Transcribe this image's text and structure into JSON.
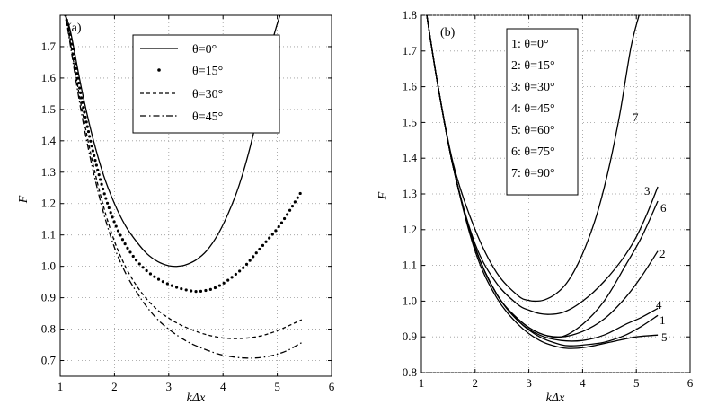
{
  "chart_data": [
    {
      "type": "line",
      "panel_label": "(a)",
      "xlabel": "kΔx",
      "ylabel": "F",
      "xlim": [
        1,
        6
      ],
      "ylim": [
        0.65,
        1.8
      ],
      "xticks": [
        1,
        2,
        3,
        4,
        5,
        6
      ],
      "yticks": [
        0.7,
        0.8,
        0.9,
        1.0,
        1.1,
        1.2,
        1.3,
        1.4,
        1.5,
        1.6,
        1.7
      ],
      "ytick_labels": [
        "0.7",
        "0.8",
        "0.9",
        "1.0",
        "1.1",
        "1.2",
        "1.3",
        "1.4",
        "1.5",
        "1.6",
        "1.7"
      ],
      "grid": true,
      "legend_position": "top-right",
      "series": [
        {
          "name": "θ=0°",
          "style": "solid",
          "x": [
            1.1,
            1.2,
            1.4,
            1.6,
            1.8,
            2.0,
            2.2,
            2.4,
            2.6,
            2.8,
            3.0,
            3.15,
            3.3,
            3.5,
            3.7,
            3.9,
            4.1,
            4.3,
            4.5,
            4.7,
            4.9,
            5.05
          ],
          "y": [
            1.8,
            1.74,
            1.56,
            1.41,
            1.29,
            1.2,
            1.13,
            1.08,
            1.04,
            1.015,
            1.002,
            1.0,
            1.004,
            1.02,
            1.05,
            1.1,
            1.17,
            1.26,
            1.38,
            1.53,
            1.71,
            1.8
          ]
        },
        {
          "name": "θ=15°",
          "style": "dotted",
          "x": [
            1.1,
            1.2,
            1.4,
            1.6,
            1.8,
            2.0,
            2.2,
            2.4,
            2.6,
            2.8,
            3.0,
            3.2,
            3.4,
            3.5,
            3.6,
            3.8,
            4.0,
            4.2,
            4.4,
            4.6,
            4.8,
            5.0,
            5.2,
            5.45
          ],
          "y": [
            1.8,
            1.72,
            1.53,
            1.37,
            1.24,
            1.14,
            1.07,
            1.02,
            0.985,
            0.96,
            0.943,
            0.93,
            0.922,
            0.92,
            0.921,
            0.928,
            0.945,
            0.97,
            1.0,
            1.04,
            1.08,
            1.12,
            1.17,
            1.24
          ]
        },
        {
          "name": "θ=30°",
          "style": "dashed",
          "x": [
            1.1,
            1.2,
            1.4,
            1.6,
            1.8,
            2.0,
            2.2,
            2.4,
            2.6,
            2.8,
            3.0,
            3.2,
            3.4,
            3.6,
            3.8,
            4.0,
            4.2,
            4.4,
            4.6,
            4.8,
            5.0,
            5.2,
            5.45
          ],
          "y": [
            1.8,
            1.7,
            1.5,
            1.33,
            1.19,
            1.08,
            1.0,
            0.94,
            0.895,
            0.86,
            0.835,
            0.815,
            0.8,
            0.787,
            0.778,
            0.772,
            0.77,
            0.771,
            0.775,
            0.783,
            0.795,
            0.81,
            0.83
          ]
        },
        {
          "name": "θ=45°",
          "style": "dashdot",
          "x": [
            1.1,
            1.2,
            1.4,
            1.6,
            1.8,
            2.0,
            2.2,
            2.4,
            2.6,
            2.8,
            3.0,
            3.2,
            3.4,
            3.6,
            3.8,
            4.0,
            4.2,
            4.4,
            4.6,
            4.8,
            5.0,
            5.2,
            5.45
          ],
          "y": [
            1.8,
            1.69,
            1.48,
            1.31,
            1.17,
            1.06,
            0.98,
            0.92,
            0.87,
            0.83,
            0.8,
            0.775,
            0.755,
            0.74,
            0.727,
            0.717,
            0.711,
            0.708,
            0.708,
            0.712,
            0.72,
            0.733,
            0.757
          ]
        }
      ],
      "legend": [
        "θ=0°",
        "θ=15°",
        "θ=30°",
        "θ=45°"
      ]
    },
    {
      "type": "line",
      "panel_label": "(b)",
      "xlabel": "kΔx",
      "ylabel": "F",
      "xlim": [
        1,
        6
      ],
      "ylim": [
        0.8,
        1.8
      ],
      "xticks": [
        1,
        2,
        3,
        4,
        5,
        6
      ],
      "yticks": [
        0.8,
        0.9,
        1.0,
        1.1,
        1.2,
        1.3,
        1.4,
        1.5,
        1.6,
        1.7,
        1.8
      ],
      "ytick_labels": [
        "0.8",
        "0.9",
        "1.0",
        "1.1",
        "1.2",
        "1.3",
        "1.4",
        "1.5",
        "1.6",
        "1.7",
        "1.8"
      ],
      "grid": true,
      "legend_position": "top-center",
      "series": [
        {
          "name": "1: θ=0°",
          "label": "1",
          "x": [
            1.1,
            1.3,
            1.6,
            2.0,
            2.4,
            2.8,
            3.2,
            3.6,
            3.8,
            4.0,
            4.4,
            4.8,
            5.1,
            5.4
          ],
          "y": [
            1.8,
            1.61,
            1.37,
            1.15,
            1.02,
            0.945,
            0.9,
            0.878,
            0.875,
            0.877,
            0.885,
            0.905,
            0.93,
            0.96
          ]
        },
        {
          "name": "2: θ=15°",
          "label": "2",
          "x": [
            1.1,
            1.3,
            1.6,
            2.0,
            2.4,
            2.8,
            3.2,
            3.6,
            4.0,
            4.4,
            4.8,
            5.1,
            5.4
          ],
          "y": [
            1.8,
            1.61,
            1.37,
            1.15,
            1.02,
            0.95,
            0.91,
            0.9,
            0.915,
            0.95,
            1.01,
            1.07,
            1.14
          ]
        },
        {
          "name": "3: θ=30°",
          "label": "3",
          "x": [
            1.1,
            1.3,
            1.6,
            2.0,
            2.4,
            2.8,
            3.0,
            3.2,
            3.4,
            3.6,
            3.8,
            4.0,
            4.2,
            4.4,
            4.6,
            4.8,
            5.0,
            5.2,
            5.4
          ],
          "y": [
            1.8,
            1.61,
            1.37,
            1.16,
            1.05,
            0.99,
            0.975,
            0.965,
            0.963,
            0.967,
            0.98,
            1.0,
            1.025,
            1.055,
            1.09,
            1.13,
            1.18,
            1.245,
            1.32
          ]
        },
        {
          "name": "4: θ=45°",
          "label": "4",
          "x": [
            1.1,
            1.3,
            1.6,
            2.0,
            2.4,
            2.8,
            3.2,
            3.6,
            4.0,
            4.4,
            4.8,
            5.1,
            5.4
          ],
          "y": [
            1.8,
            1.61,
            1.37,
            1.15,
            1.02,
            0.945,
            0.905,
            0.89,
            0.89,
            0.905,
            0.935,
            0.955,
            0.98
          ]
        },
        {
          "name": "5: θ=60°",
          "label": "5",
          "x": [
            1.1,
            1.3,
            1.6,
            2.0,
            2.4,
            2.8,
            3.2,
            3.6,
            3.9,
            4.2,
            4.6,
            5.0,
            5.4
          ],
          "y": [
            1.8,
            1.61,
            1.37,
            1.14,
            1.01,
            0.935,
            0.89,
            0.87,
            0.868,
            0.875,
            0.888,
            0.9,
            0.905
          ]
        },
        {
          "name": "6: θ=75°",
          "label": "6",
          "x": [
            1.1,
            1.3,
            1.6,
            2.0,
            2.4,
            2.8,
            3.2,
            3.6,
            4.0,
            4.4,
            4.8,
            5.1,
            5.4
          ],
          "y": [
            1.8,
            1.61,
            1.37,
            1.15,
            1.02,
            0.95,
            0.91,
            0.9,
            0.935,
            1.0,
            1.1,
            1.18,
            1.28
          ]
        },
        {
          "name": "7: θ=90°",
          "label": "7",
          "x": [
            1.1,
            1.3,
            1.6,
            2.0,
            2.4,
            2.8,
            3.0,
            3.15,
            3.3,
            3.5,
            3.7,
            3.9,
            4.1,
            4.3,
            4.5,
            4.7,
            4.9,
            5.05
          ],
          "y": [
            1.8,
            1.61,
            1.38,
            1.2,
            1.08,
            1.015,
            1.002,
            1.0,
            1.004,
            1.02,
            1.05,
            1.1,
            1.17,
            1.26,
            1.38,
            1.53,
            1.71,
            1.8
          ]
        }
      ],
      "legend": [
        "1: θ=0°",
        "2: θ=15°",
        "3: θ=30°",
        "4: θ=45°",
        "5: θ=60°",
        "6: θ=75°",
        "7: θ=90°"
      ]
    }
  ]
}
